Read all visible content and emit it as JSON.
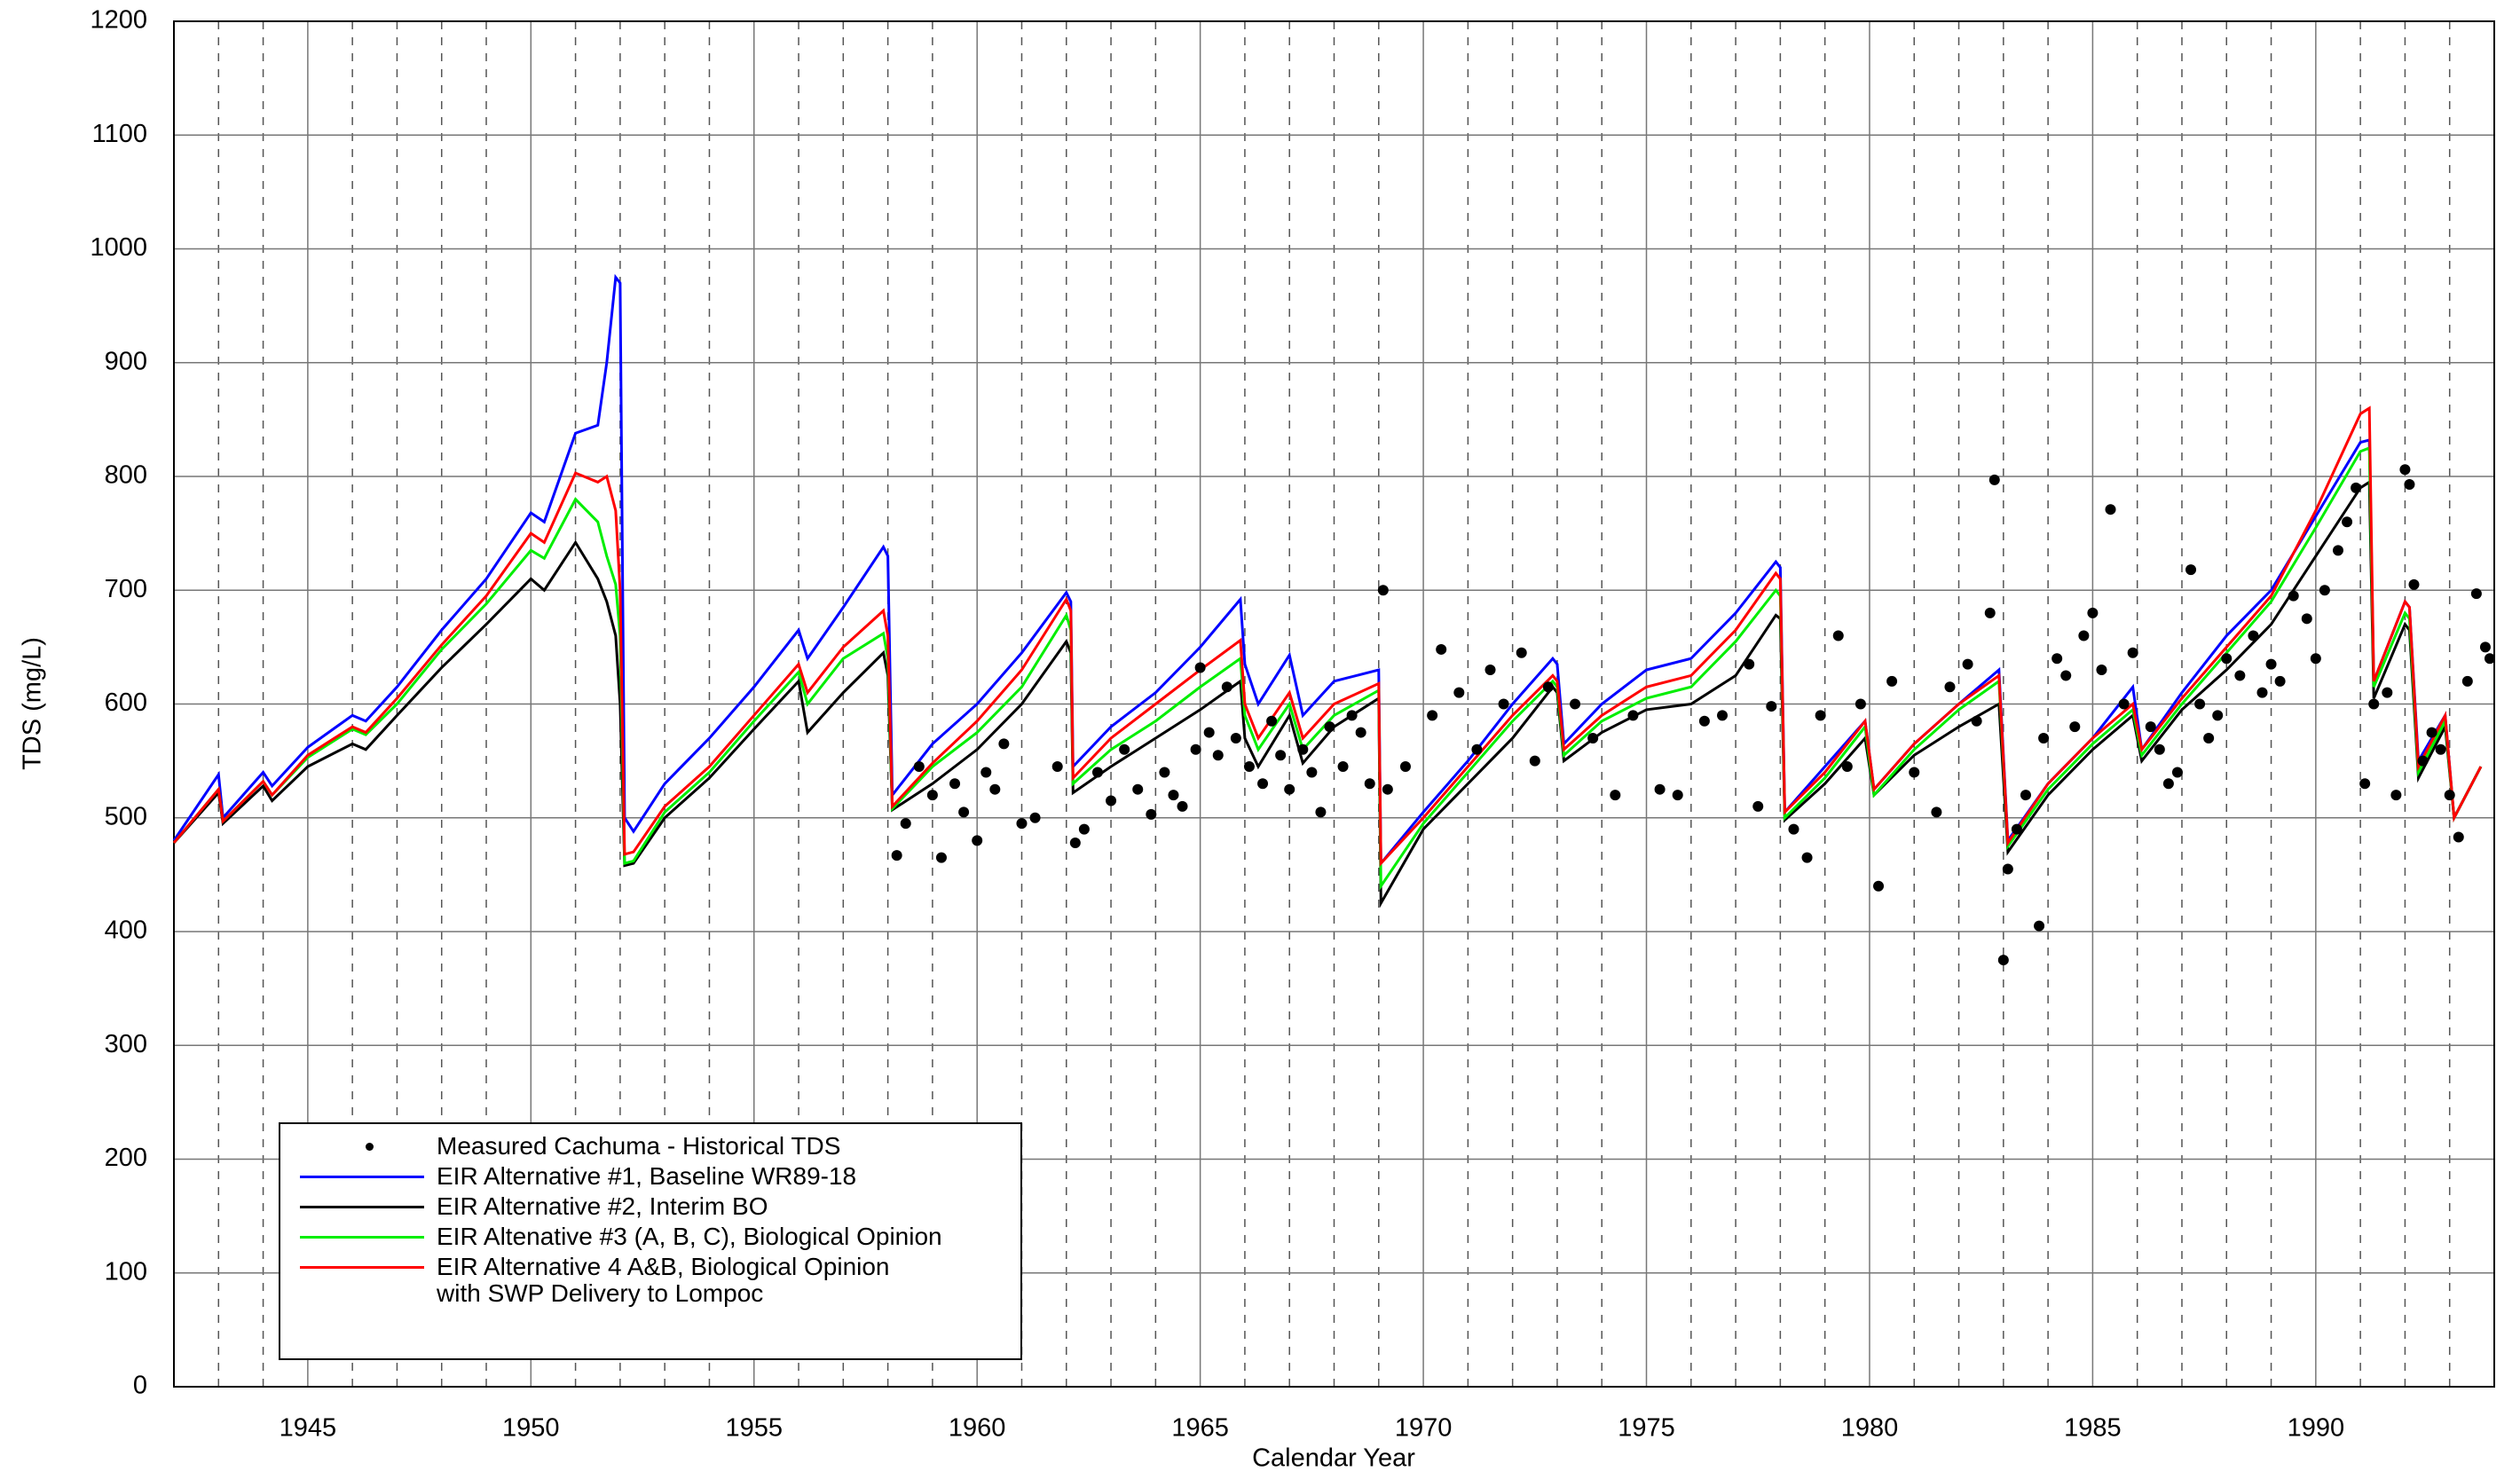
{
  "chart_data": {
    "type": "line",
    "xlabel": "Calendar Year",
    "ylabel": "TDS (mg/L)",
    "xlim": [
      1942,
      1994
    ],
    "xticks": [
      1945,
      1950,
      1955,
      1960,
      1965,
      1970,
      1975,
      1980,
      1985,
      1990
    ],
    "minor_grid_step": 1,
    "ylim": [
      0,
      1200
    ],
    "yticks": [
      0,
      100,
      200,
      300,
      400,
      500,
      600,
      700,
      800,
      900,
      1000,
      1100,
      1200
    ],
    "grid": true,
    "x": [
      1942,
      1943,
      1943.1,
      1944,
      1944.2,
      1945,
      1946,
      1946.3,
      1947,
      1948,
      1949,
      1950,
      1950.3,
      1951,
      1951.5,
      1951.7,
      1951.9,
      1952,
      1952.1,
      1952.3,
      1953,
      1954,
      1955,
      1956,
      1956.2,
      1957,
      1957.9,
      1958,
      1958.1,
      1959,
      1960,
      1961,
      1962,
      1962.1,
      1962.15,
      1963,
      1964,
      1965,
      1965.9,
      1966,
      1966.3,
      1967,
      1967.3,
      1968,
      1969,
      1969.05,
      1970,
      1971,
      1972,
      1972.9,
      1973,
      1973.15,
      1974,
      1975,
      1976,
      1977,
      1977.9,
      1978,
      1978.1,
      1979,
      1979.9,
      1980.1,
      1981,
      1982,
      1982.9,
      1983.1,
      1984,
      1985,
      1985.9,
      1986.1,
      1987,
      1988,
      1989,
      1990,
      1991,
      1991.2,
      1991.3,
      1992,
      1992.1,
      1992.3,
      1992.9,
      1993.1,
      1993.7
    ],
    "series": [
      {
        "name": "Measured Cachuma - Historical TDS",
        "type": "scatter",
        "color": "#000000",
        "x": [
          1958.2,
          1958.4,
          1958.7,
          1959,
          1959.2,
          1959.5,
          1959.7,
          1960,
          1960.2,
          1960.4,
          1960.6,
          1961,
          1961.3,
          1961.8,
          1962.2,
          1962.4,
          1962.7,
          1963,
          1963.3,
          1963.6,
          1963.9,
          1964.2,
          1964.4,
          1964.6,
          1964.9,
          1965,
          1965.2,
          1965.4,
          1965.6,
          1965.8,
          1966.1,
          1966.4,
          1966.6,
          1966.8,
          1967,
          1967.3,
          1967.5,
          1967.7,
          1967.9,
          1968.2,
          1968.4,
          1968.6,
          1968.8,
          1969.1,
          1969.2,
          1969.6,
          1970.2,
          1970.4,
          1970.8,
          1971.2,
          1971.5,
          1971.8,
          1972.2,
          1972.5,
          1972.8,
          1973.4,
          1973.8,
          1974.3,
          1974.7,
          1975.3,
          1975.7,
          1976.3,
          1976.7,
          1977.3,
          1977.5,
          1977.8,
          1978.3,
          1978.6,
          1978.9,
          1979.3,
          1979.5,
          1979.8,
          1980.2,
          1980.5,
          1981,
          1981.5,
          1981.8,
          1982.2,
          1982.4,
          1982.7,
          1982.8,
          1983,
          1983.1,
          1983.3,
          1983.5,
          1983.8,
          1983.9,
          1984.2,
          1984.4,
          1984.6,
          1984.8,
          1985,
          1985.2,
          1985.4,
          1985.7,
          1985.9,
          1986.3,
          1986.5,
          1986.7,
          1986.9,
          1987.2,
          1987.4,
          1987.6,
          1987.8,
          1988,
          1988.3,
          1988.6,
          1988.8,
          1989,
          1989.2,
          1989.5,
          1989.8,
          1990,
          1990.2,
          1990.5,
          1990.7,
          1990.9,
          1991.1,
          1991.3,
          1991.6,
          1991.8,
          1992,
          1992.1,
          1992.2,
          1992.4,
          1992.6,
          1992.8,
          1993,
          1993.2,
          1993.4,
          1993.6,
          1993.8,
          1993.9
        ],
        "values": [
          467,
          495,
          545,
          520,
          465,
          530,
          505,
          480,
          540,
          525,
          565,
          495,
          500,
          545,
          478,
          490,
          540,
          515,
          560,
          525,
          503,
          540,
          520,
          510,
          560,
          632,
          575,
          555,
          615,
          570,
          545,
          530,
          585,
          555,
          525,
          560,
          540,
          505,
          580,
          545,
          590,
          575,
          530,
          700,
          525,
          545,
          590,
          648,
          610,
          560,
          630,
          600,
          645,
          550,
          615,
          600,
          570,
          520,
          590,
          525,
          520,
          585,
          590,
          635,
          510,
          598,
          490,
          465,
          590,
          660,
          545,
          600,
          440,
          620,
          540,
          505,
          615,
          635,
          585,
          680,
          797,
          375,
          455,
          490,
          520,
          405,
          570,
          640,
          625,
          580,
          660,
          680,
          630,
          771,
          600,
          645,
          580,
          560,
          530,
          540,
          718,
          600,
          570,
          590,
          640,
          625,
          660,
          610,
          635,
          620,
          695,
          675,
          640,
          700,
          735,
          760,
          790,
          530,
          600,
          610,
          520,
          806,
          793,
          705,
          550,
          575,
          560,
          520,
          483,
          620,
          697,
          650,
          640
        ]
      },
      {
        "name": "EIR Alternative #1, Baseline WR89-18",
        "color": "#0000ff",
        "values": [
          480,
          538,
          500,
          540,
          528,
          562,
          590,
          585,
          615,
          665,
          710,
          768,
          760,
          838,
          845,
          900,
          975,
          970,
          500,
          488,
          530,
          570,
          615,
          665,
          640,
          685,
          738,
          730,
          520,
          565,
          600,
          645,
          698,
          690,
          545,
          580,
          610,
          650,
          692,
          635,
          600,
          643,
          590,
          620,
          630,
          460,
          505,
          550,
          600,
          640,
          635,
          565,
          600,
          630,
          640,
          680,
          725,
          720,
          505,
          545,
          585,
          525,
          565,
          600,
          630,
          480,
          530,
          570,
          615,
          560,
          610,
          660,
          700,
          765,
          830,
          832,
          620,
          690,
          685,
          550,
          590,
          500,
          545
        ]
      },
      {
        "name": "EIR Alternative #2, Interim BO",
        "color": "#000000",
        "values": [
          478,
          522,
          495,
          528,
          515,
          545,
          565,
          560,
          590,
          632,
          670,
          710,
          700,
          742,
          710,
          690,
          660,
          600,
          458,
          460,
          500,
          535,
          578,
          620,
          575,
          610,
          645,
          625,
          507,
          530,
          560,
          600,
          655,
          645,
          522,
          545,
          570,
          595,
          620,
          570,
          545,
          590,
          548,
          580,
          605,
          425,
          490,
          530,
          570,
          615,
          610,
          550,
          575,
          595,
          600,
          625,
          678,
          675,
          498,
          530,
          570,
          520,
          555,
          580,
          600,
          470,
          520,
          560,
          590,
          550,
          595,
          630,
          670,
          730,
          790,
          795,
          605,
          670,
          665,
          535,
          580,
          500,
          545
        ]
      },
      {
        "name": "EIR Altenative #3 (A, B, C), Biological Opinion",
        "color": "#00ee00",
        "values": [
          478,
          525,
          497,
          532,
          520,
          553,
          578,
          573,
          600,
          648,
          688,
          735,
          728,
          780,
          760,
          730,
          705,
          660,
          460,
          462,
          505,
          540,
          585,
          628,
          600,
          640,
          662,
          640,
          508,
          545,
          575,
          615,
          678,
          665,
          530,
          560,
          585,
          615,
          640,
          590,
          560,
          600,
          560,
          590,
          612,
          440,
          495,
          540,
          585,
          620,
          615,
          555,
          585,
          605,
          615,
          655,
          700,
          695,
          500,
          535,
          580,
          520,
          560,
          595,
          620,
          475,
          525,
          565,
          595,
          555,
          600,
          645,
          690,
          755,
          822,
          825,
          615,
          680,
          675,
          540,
          585,
          500,
          545
        ]
      },
      {
        "name": "EIR Alternative 4 A&B, Biological Opinion\nwith SWP Delivery to Lompoc",
        "color": "#ff0000",
        "values": [
          478,
          525,
          497,
          532,
          520,
          555,
          580,
          575,
          605,
          652,
          695,
          750,
          742,
          803,
          795,
          800,
          770,
          700,
          468,
          470,
          510,
          545,
          590,
          635,
          610,
          650,
          682,
          660,
          510,
          548,
          585,
          630,
          692,
          682,
          535,
          570,
          600,
          630,
          656,
          600,
          570,
          610,
          570,
          600,
          618,
          460,
          500,
          545,
          590,
          625,
          620,
          560,
          590,
          615,
          625,
          665,
          715,
          710,
          505,
          540,
          585,
          525,
          565,
          600,
          625,
          478,
          530,
          570,
          600,
          560,
          605,
          650,
          695,
          770,
          855,
          860,
          620,
          690,
          685,
          545,
          590,
          500,
          545
        ]
      }
    ]
  }
}
